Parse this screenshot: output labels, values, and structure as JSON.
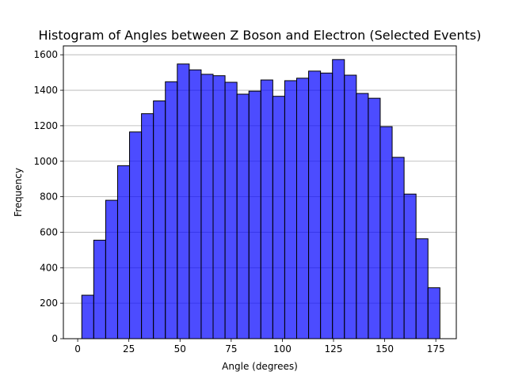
{
  "chart_data": {
    "type": "bar",
    "title": "Histogram of Angles between Z Boson and Electron (Selected Events)",
    "xlabel": "Angle (degrees)",
    "ylabel": "Frequency",
    "xlim": [
      -7,
      185
    ],
    "ylim": [
      0,
      1650
    ],
    "x_ticks": [
      0,
      25,
      50,
      75,
      100,
      125,
      150,
      175
    ],
    "y_ticks": [
      0,
      200,
      400,
      600,
      800,
      1000,
      1200,
      1400,
      1600
    ],
    "grid": "horizontal",
    "bin_start": 2,
    "bin_width": 5.833,
    "values": [
      245,
      555,
      780,
      975,
      1165,
      1268,
      1340,
      1448,
      1548,
      1515,
      1490,
      1482,
      1445,
      1378,
      1395,
      1458,
      1366,
      1454,
      1468,
      1508,
      1497,
      1573,
      1485,
      1382,
      1355,
      1195,
      1022,
      815,
      563,
      287
    ],
    "colors": {
      "fill": "#0000ff",
      "fill_opacity": 0.7,
      "edge": "#000000",
      "grid": "#b0b0b0"
    }
  }
}
